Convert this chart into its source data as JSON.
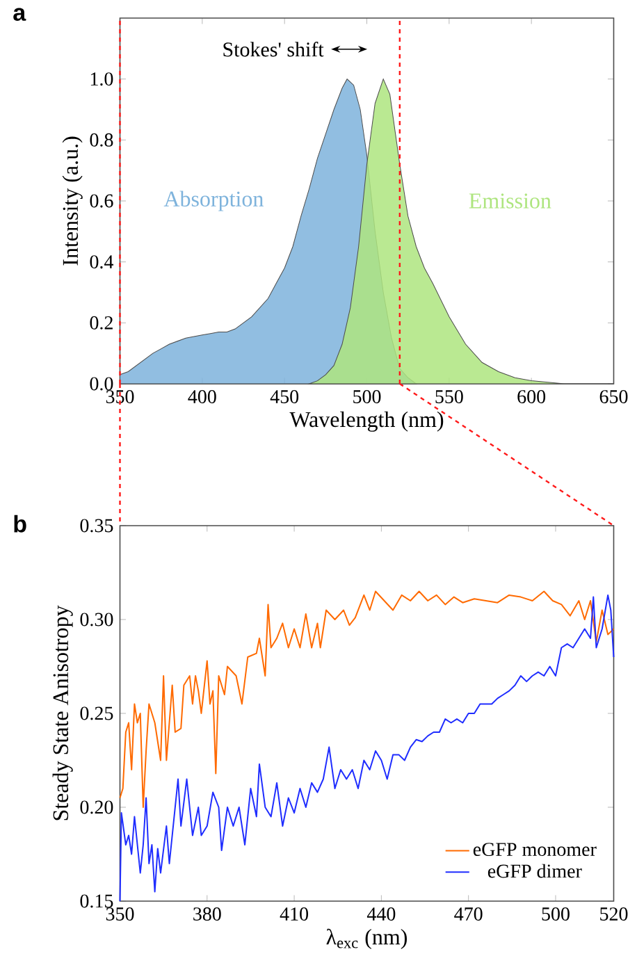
{
  "chart_data": [
    {
      "type": "area",
      "xlabel": "Wavelength (nm)",
      "ylabel": "Intensity (a.u.)",
      "xlim": [
        350,
        650
      ],
      "ylim": [
        0,
        1.2
      ],
      "xticks": [
        350,
        400,
        450,
        500,
        550,
        600,
        650
      ],
      "yticks": [
        {
          "value": 0,
          "label": "0.0"
        },
        {
          "value": 0.2,
          "label": "0.2"
        },
        {
          "value": 0.4,
          "label": "0.4"
        },
        {
          "value": 0.6,
          "label": "0.6"
        },
        {
          "value": 0.8,
          "label": "0.8"
        },
        {
          "value": 1.0,
          "label": "1.0"
        }
      ],
      "series": [
        {
          "name": "Absorption",
          "color": "#7eb3dc",
          "x": [
            350,
            355,
            360,
            365,
            370,
            375,
            380,
            385,
            390,
            395,
            400,
            405,
            410,
            415,
            420,
            425,
            430,
            435,
            440,
            445,
            450,
            455,
            460,
            465,
            470,
            475,
            480,
            485,
            488,
            492,
            496,
            500,
            505,
            510,
            515,
            520,
            525,
            530
          ],
          "values": [
            0.03,
            0.04,
            0.06,
            0.08,
            0.1,
            0.115,
            0.13,
            0.14,
            0.15,
            0.155,
            0.16,
            0.165,
            0.17,
            0.17,
            0.18,
            0.2,
            0.22,
            0.25,
            0.28,
            0.33,
            0.38,
            0.45,
            0.55,
            0.64,
            0.74,
            0.82,
            0.9,
            0.97,
            1.0,
            0.98,
            0.9,
            0.75,
            0.5,
            0.3,
            0.15,
            0.05,
            0.02,
            0.0
          ]
        },
        {
          "name": "Emission",
          "color": "#aee57f",
          "x": [
            465,
            470,
            475,
            480,
            485,
            490,
            495,
            500,
            505,
            510,
            514,
            520,
            525,
            530,
            535,
            540,
            550,
            560,
            570,
            580,
            590,
            600,
            610,
            620,
            650
          ],
          "values": [
            0.0,
            0.01,
            0.03,
            0.06,
            0.13,
            0.25,
            0.45,
            0.72,
            0.92,
            1.0,
            0.95,
            0.72,
            0.55,
            0.45,
            0.38,
            0.33,
            0.22,
            0.13,
            0.07,
            0.04,
            0.02,
            0.01,
            0.005,
            0.0,
            0.0
          ]
        }
      ],
      "ref_lines": [
        {
          "axis": "x",
          "value": 350,
          "color": "#ff1a1a",
          "line_style": "dashed"
        },
        {
          "axis": "x",
          "value": 520,
          "color": "#ff1a1a",
          "line_style": "dashed"
        }
      ],
      "annotations": [
        "a",
        "Stokes' shift"
      ]
    },
    {
      "type": "line",
      "xlabel": "λ$_{exc}$ (nm)",
      "ylabel": "Steady State Anisotropy",
      "xlim": [
        350,
        520
      ],
      "ylim": [
        0.15,
        0.35
      ],
      "xticks": [
        350,
        380,
        410,
        440,
        470,
        500,
        520
      ],
      "yticks": [
        {
          "value": 0.15,
          "label": "0.15"
        },
        {
          "value": 0.2,
          "label": "0.20"
        },
        {
          "value": 0.25,
          "label": "0.25"
        },
        {
          "value": 0.3,
          "label": "0.30"
        },
        {
          "value": 0.35,
          "label": "0.35"
        }
      ],
      "legend": "bottom right",
      "series": [
        {
          "name": "eGFP monomer",
          "color": "#ff6a00",
          "x": [
            350,
            351,
            352,
            353,
            354,
            355,
            356,
            357,
            358,
            359,
            360,
            362,
            364,
            365,
            366,
            368,
            369,
            371,
            372,
            374,
            375,
            376,
            377,
            378,
            380,
            381,
            382,
            383,
            384,
            386,
            387,
            390,
            392,
            394,
            397,
            398,
            400,
            401,
            402,
            404,
            406,
            408,
            410,
            412,
            414,
            416,
            418,
            419,
            421,
            424,
            427,
            429,
            431,
            434,
            436,
            438,
            441,
            444,
            447,
            450,
            453,
            456,
            459,
            462,
            465,
            468,
            472,
            476,
            480,
            484,
            488,
            492,
            496,
            499,
            502,
            505,
            508,
            510,
            512,
            514,
            516,
            518,
            520
          ],
          "values": [
            0.205,
            0.21,
            0.24,
            0.245,
            0.22,
            0.255,
            0.245,
            0.25,
            0.2,
            0.23,
            0.255,
            0.245,
            0.225,
            0.27,
            0.225,
            0.265,
            0.24,
            0.242,
            0.265,
            0.27,
            0.255,
            0.27,
            0.262,
            0.25,
            0.278,
            0.255,
            0.262,
            0.218,
            0.27,
            0.26,
            0.275,
            0.27,
            0.255,
            0.28,
            0.282,
            0.29,
            0.27,
            0.308,
            0.285,
            0.29,
            0.298,
            0.285,
            0.295,
            0.285,
            0.303,
            0.285,
            0.298,
            0.285,
            0.305,
            0.3,
            0.305,
            0.297,
            0.301,
            0.313,
            0.305,
            0.315,
            0.31,
            0.305,
            0.313,
            0.31,
            0.315,
            0.31,
            0.313,
            0.308,
            0.312,
            0.309,
            0.311,
            0.31,
            0.309,
            0.313,
            0.312,
            0.31,
            0.315,
            0.31,
            0.308,
            0.302,
            0.31,
            0.3,
            0.31,
            0.288,
            0.305,
            0.292,
            0.295
          ]
        },
        {
          "name": "eGFP dimer",
          "color": "#1f2dff",
          "x": [
            350,
            350.5,
            352,
            353,
            354,
            355,
            357,
            358,
            359,
            360,
            361,
            362,
            363,
            364,
            366,
            367,
            369,
            370,
            371,
            373,
            375,
            377,
            378,
            380,
            382,
            384,
            385,
            387,
            389,
            391,
            393,
            395,
            397,
            398,
            400,
            402,
            404,
            406,
            408,
            410,
            412,
            414,
            416,
            418,
            420,
            422,
            424,
            426,
            428,
            430,
            432,
            434,
            436,
            438,
            440,
            442,
            444,
            446,
            448,
            450,
            452,
            454,
            456,
            458,
            460,
            462,
            464,
            466,
            468,
            470,
            472,
            474,
            476,
            478,
            480,
            482,
            484,
            486,
            488,
            490,
            492,
            494,
            496,
            498,
            500,
            502,
            504,
            506,
            508,
            510,
            512,
            513,
            514,
            516,
            518,
            519,
            520
          ],
          "values": [
            0.15,
            0.197,
            0.18,
            0.185,
            0.175,
            0.195,
            0.165,
            0.18,
            0.205,
            0.17,
            0.18,
            0.155,
            0.178,
            0.165,
            0.19,
            0.17,
            0.2,
            0.215,
            0.19,
            0.215,
            0.185,
            0.2,
            0.185,
            0.19,
            0.208,
            0.2,
            0.177,
            0.2,
            0.19,
            0.2,
            0.18,
            0.21,
            0.195,
            0.223,
            0.2,
            0.195,
            0.213,
            0.19,
            0.205,
            0.197,
            0.21,
            0.2,
            0.213,
            0.208,
            0.215,
            0.232,
            0.21,
            0.22,
            0.215,
            0.22,
            0.21,
            0.225,
            0.22,
            0.23,
            0.225,
            0.215,
            0.228,
            0.228,
            0.225,
            0.232,
            0.236,
            0.235,
            0.238,
            0.24,
            0.24,
            0.247,
            0.245,
            0.247,
            0.245,
            0.25,
            0.25,
            0.255,
            0.255,
            0.255,
            0.258,
            0.26,
            0.262,
            0.265,
            0.27,
            0.267,
            0.27,
            0.272,
            0.27,
            0.275,
            0.27,
            0.285,
            0.287,
            0.285,
            0.29,
            0.295,
            0.29,
            0.312,
            0.285,
            0.295,
            0.313,
            0.305,
            0.28
          ]
        }
      ],
      "annotations": [
        "b"
      ]
    }
  ]
}
